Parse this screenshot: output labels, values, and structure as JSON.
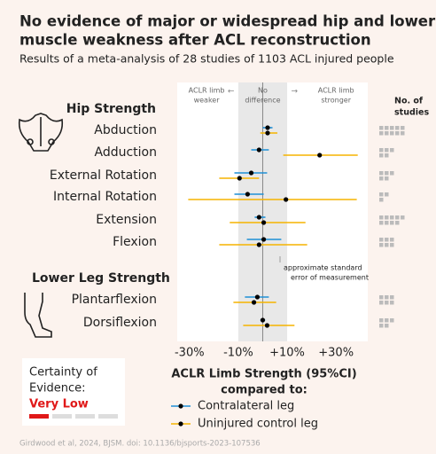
{
  "chart_data": {
    "type": "forest",
    "title": [
      "No evidence of major or widespread hip and lower leg",
      "muscle weakness after ACL reconstruction"
    ],
    "subtitle": "Results of a meta-analysis of 28 studies of 1103 ACL injured people",
    "region_labels": [
      [
        "ACLR limb",
        "weaker"
      ],
      [
        "No",
        "difference"
      ],
      [
        "ACLR limb",
        "stronger"
      ]
    ],
    "studies_label": [
      "No. of",
      "studies"
    ],
    "groups": [
      "Hip Strength",
      "Lower Leg Strength"
    ],
    "categories": [
      "Abduction",
      "Adduction",
      "External Rotation",
      "Internal Rotation",
      "Extension",
      "Flexion",
      "Plantarflexion",
      "Dorsiflexion"
    ],
    "series": [
      {
        "name": "Contralateral leg",
        "color": "#1f8fd6",
        "values": [
          2,
          -1.5,
          -4.7,
          -6.2,
          -1.5,
          0.4,
          -2.2,
          0
        ],
        "ci_low": [
          0,
          -4.7,
          -11.6,
          -11.6,
          -3.3,
          -6.5,
          -7.3,
          -1
        ],
        "ci_high": [
          4,
          2.5,
          1.8,
          0.4,
          1.1,
          7.6,
          2.5,
          1
        ]
      },
      {
        "name": "Uninjured control leg",
        "color": "#f5b400",
        "values": [
          2,
          23.3,
          -9.5,
          9.5,
          0.4,
          -1.5,
          -3.6,
          1.8
        ],
        "ci_low": [
          -1,
          8.4,
          -17.8,
          -30.5,
          -13.5,
          -17.8,
          -12,
          -8
        ],
        "ci_high": [
          6,
          38.9,
          -1.5,
          38.5,
          17.5,
          18.2,
          5.5,
          13
        ]
      }
    ],
    "studies": [
      10,
      5,
      5,
      3,
      9,
      6,
      6,
      5
    ],
    "band": [
      -10,
      10
    ],
    "reference_line": 0,
    "annotation": [
      "approximate standard",
      "error of measurement"
    ],
    "xlim": [
      -35,
      43
    ],
    "xticks": [
      {
        "value": -30,
        "label": "-30%"
      },
      {
        "value": -10,
        "label": "-10%"
      },
      {
        "value": 10,
        "label": "+10%"
      },
      {
        "value": 30,
        "label": "+30%"
      }
    ],
    "xlabel": [
      "ACLR Limb Strength (95%CI)",
      "compared to:"
    ],
    "certainty": {
      "title": [
        "Certainty of",
        "Evidence:"
      ],
      "level": "Very Low"
    },
    "source": "Girdwood et al, 2024, BJSM. doi: 10.1136/bjsports-2023-107536"
  }
}
